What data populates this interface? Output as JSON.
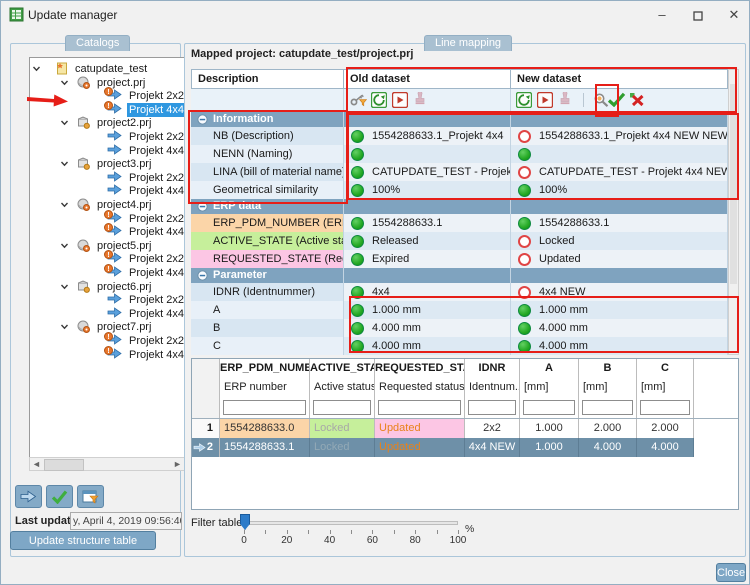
{
  "window": {
    "title": "Update manager"
  },
  "catalogs": {
    "tab_label": "Catalogs",
    "tree": [
      {
        "label": "catupdate_test",
        "level": 0,
        "icon": "catalog",
        "expandable": true
      },
      {
        "label": "project.prj",
        "level": 1,
        "icon": "project-orange",
        "expandable": true
      },
      {
        "label": "Projekt 2x2",
        "level": 2,
        "icon": "arrow",
        "badge": true
      },
      {
        "label": "Projekt 4x4",
        "level": 2,
        "icon": "arrow",
        "badge": true,
        "selected": true
      },
      {
        "label": "project2.prj",
        "level": 1,
        "icon": "project-gray",
        "expandable": true
      },
      {
        "label": "Projekt 2x2",
        "level": 2,
        "icon": "arrow"
      },
      {
        "label": "Projekt 4x4",
        "level": 2,
        "icon": "arrow"
      },
      {
        "label": "project3.prj",
        "level": 1,
        "icon": "project-gray",
        "expandable": true
      },
      {
        "label": "Projekt 2x2",
        "level": 2,
        "icon": "arrow"
      },
      {
        "label": "Projekt 4x4",
        "level": 2,
        "icon": "arrow"
      },
      {
        "label": "project4.prj",
        "level": 1,
        "icon": "project-orange",
        "expandable": true
      },
      {
        "label": "Projekt 2x2",
        "level": 2,
        "icon": "arrow",
        "badge": true
      },
      {
        "label": "Projekt 4x4",
        "level": 2,
        "icon": "arrow",
        "badge": true
      },
      {
        "label": "project5.prj",
        "level": 1,
        "icon": "project-orange",
        "expandable": true
      },
      {
        "label": "Projekt 2x2",
        "level": 2,
        "icon": "arrow",
        "badge": true
      },
      {
        "label": "Projekt 4x4",
        "level": 2,
        "icon": "arrow",
        "badge": true
      },
      {
        "label": "project6.prj",
        "level": 1,
        "icon": "project-gray",
        "expandable": true
      },
      {
        "label": "Projekt 2x2",
        "level": 2,
        "icon": "arrow"
      },
      {
        "label": "Projekt 4x4",
        "level": 2,
        "icon": "arrow"
      },
      {
        "label": "project7.prj",
        "level": 1,
        "icon": "project-orange",
        "expandable": true
      },
      {
        "label": "Projekt 2x2",
        "level": 2,
        "icon": "arrow",
        "badge": true
      },
      {
        "label": "Projekt 4x4",
        "level": 2,
        "icon": "arrow",
        "badge": true
      }
    ],
    "action_icons": [
      "map-arrow-icon",
      "confirm-check-icon",
      "export-filter-icon"
    ],
    "last_update_label": "Last update",
    "last_update_value": "y, April 4, 2019 09:56:40",
    "update_button": "Update structure table"
  },
  "line_mapping": {
    "tab_label": "Line mapping",
    "mapped_project": "Mapped project: catupdate_test/project.prj",
    "header": {
      "description": "Description",
      "old": "Old dataset",
      "new": "New dataset"
    },
    "old_toolbar": [
      "key-filter-icon",
      "load-icon",
      "play-icon",
      "stamp-icon"
    ],
    "new_toolbar": [
      "load-icon",
      "play-icon",
      "stamp-icon",
      "search-icon",
      "accept-check-icon",
      "reject-x-icon"
    ],
    "sections": [
      {
        "title": "Information",
        "rows": [
          {
            "label": "NB (Description)",
            "old": {
              "status": "ok",
              "text": "1554288633.1_Projekt 4x4"
            },
            "new": {
              "status": "changed",
              "text": "1554288633.1_Projekt 4x4 NEW NEW"
            }
          },
          {
            "label": "NENN (Naming)",
            "old": {
              "status": "ok",
              "text": ""
            },
            "new": {
              "status": "ok",
              "text": ""
            }
          },
          {
            "label": "LINA (bill of material name)",
            "old": {
              "status": "ok",
              "text": "CATUPDATE_TEST - Projekt 4x4"
            },
            "new": {
              "status": "changed",
              "text": "CATUPDATE_TEST - Projekt 4x4 NEW NEW"
            }
          },
          {
            "label": "Geometrical similarity",
            "old": {
              "status": "ok",
              "text": "100%"
            },
            "new": {
              "status": "ok",
              "text": "100%"
            }
          }
        ]
      },
      {
        "title": "ERP data",
        "rows": [
          {
            "label": "ERP_PDM_NUMBER (ERP number)",
            "label_bg": "peach",
            "old": {
              "status": "ok",
              "text": "1554288633.1"
            },
            "new": {
              "status": "ok",
              "text": "1554288633.1"
            }
          },
          {
            "label": "ACTIVE_STATE (Active status)",
            "label_bg": "green",
            "old": {
              "status": "ok",
              "text": "Released"
            },
            "new": {
              "status": "changed",
              "text": "Locked"
            }
          },
          {
            "label": "REQUESTED_STATE (Requested s...",
            "label_bg": "pink",
            "old": {
              "status": "ok",
              "text": "Expired"
            },
            "new": {
              "status": "changed",
              "text": "Updated"
            }
          }
        ]
      },
      {
        "title": "Parameter",
        "rows": [
          {
            "label": "IDNR (Identnummer)",
            "old": {
              "status": "ok",
              "text": "4x4"
            },
            "new": {
              "status": "changed",
              "text": "4x4 NEW"
            }
          },
          {
            "label": "A",
            "old": {
              "status": "ok",
              "text": "1.000 mm"
            },
            "new": {
              "status": "ok",
              "text": "1.000 mm"
            }
          },
          {
            "label": "B",
            "old": {
              "status": "ok",
              "text": "4.000 mm"
            },
            "new": {
              "status": "ok",
              "text": "4.000 mm"
            }
          },
          {
            "label": "C",
            "old": {
              "status": "ok",
              "text": "4.000 mm"
            },
            "new": {
              "status": "ok",
              "text": "4.000 mm"
            }
          }
        ]
      }
    ],
    "bottom_table": {
      "columns": [
        {
          "name": "ERP_PDM_NUMBER",
          "sub": "ERP number"
        },
        {
          "name": "ACTIVE_STATE",
          "sub": "Active status"
        },
        {
          "name": "REQUESTED_STATE",
          "sub": "Requested status"
        },
        {
          "name": "IDNR",
          "sub": "Identnum..."
        },
        {
          "name": "A",
          "sub": "[mm]"
        },
        {
          "name": "B",
          "sub": "[mm]"
        },
        {
          "name": "C",
          "sub": "[mm]"
        }
      ],
      "rows": [
        {
          "num": "1",
          "selected": false,
          "cells": [
            "1554288633.0",
            "Locked",
            "Updated",
            "2x2",
            "1.000",
            "2.000",
            "2.000"
          ]
        },
        {
          "num": "2",
          "selected": true,
          "cells": [
            "1554288633.1",
            "Locked",
            "Updated",
            "4x4 NEW",
            "1.000",
            "4.000",
            "4.000"
          ]
        }
      ]
    },
    "filter": {
      "label": "Filter table:",
      "ticks": [
        "0",
        "20",
        "40",
        "60",
        "80",
        "100"
      ],
      "unit": "%",
      "value": 0
    },
    "close_button": "Close"
  },
  "colors": {
    "selection_blue": "#2f97e0",
    "section_header": "#7fa3bf",
    "peach": "#fbd5a8",
    "green_label": "#c6ef9b",
    "pink_label": "#fcc6e4",
    "status_ok": "#23a823",
    "status_changed": "#e04545",
    "locked_text": "#a8a8a8",
    "updated_text": "#e8821a",
    "annotation_red": "#e61e18"
  }
}
